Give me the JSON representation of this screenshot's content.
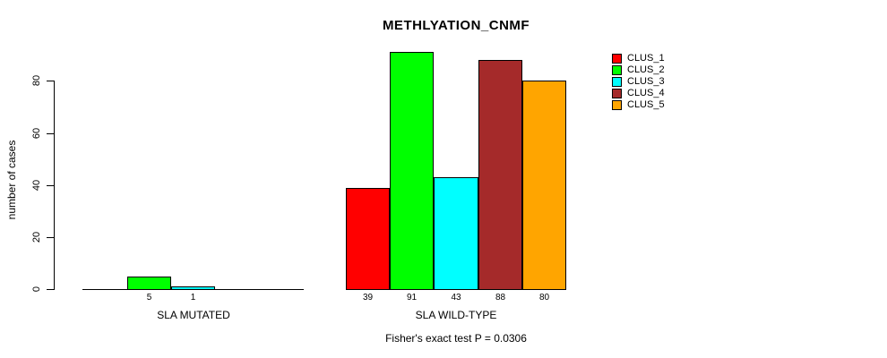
{
  "title": "METHLYATION_CNMF",
  "footer": "Fisher's exact test P = 0.0306",
  "y_axis": {
    "label": "number of cases"
  },
  "legend": [
    {
      "label": "CLUS_1",
      "color": "#FF0000"
    },
    {
      "label": "CLUS_2",
      "color": "#00FF00"
    },
    {
      "label": "CLUS_3",
      "color": "#00FFFF"
    },
    {
      "label": "CLUS_4",
      "color": "#A52A2A"
    },
    {
      "label": "CLUS_5",
      "color": "#FFA500"
    }
  ],
  "chart_data": {
    "type": "bar",
    "title": "METHLYATION_CNMF",
    "ylabel": "number of cases",
    "yticks": [
      0,
      20,
      40,
      60,
      80
    ],
    "ylim": [
      0,
      91
    ],
    "grid": false,
    "legend_position": "right",
    "series_names": [
      "CLUS_1",
      "CLUS_2",
      "CLUS_3",
      "CLUS_4",
      "CLUS_5"
    ],
    "series_colors": [
      "#FF0000",
      "#00FF00",
      "#00FFFF",
      "#A52A2A",
      "#FFA500"
    ],
    "categories": [
      "SLA MUTATED",
      "SLA WILD-TYPE"
    ],
    "groups": [
      {
        "label": "SLA MUTATED",
        "values": [
          0,
          5,
          1,
          0,
          0
        ]
      },
      {
        "label": "SLA WILD-TYPE",
        "values": [
          39,
          91,
          43,
          88,
          80
        ]
      }
    ],
    "annotation": "Fisher's exact test P = 0.0306"
  }
}
